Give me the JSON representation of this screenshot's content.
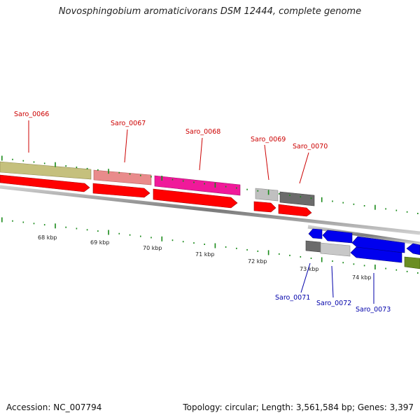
{
  "title": "Novosphingobium aromaticivorans DSM 12444, complete genome",
  "footer": {
    "accession": "Accession: NC_007794",
    "topology": "Topology: circular; Length: 3,561,584 bp; Genes: 3,397"
  },
  "genes_top": [
    {
      "label": "Saro_0066",
      "color": "#c5c07d"
    },
    {
      "label": "Saro_0067",
      "color": "#e98b8b"
    },
    {
      "label": "Saro_0068",
      "color": "#f0199a"
    },
    {
      "label": "Saro_0069",
      "color": "#c0c0c0"
    },
    {
      "label": "Saro_0070",
      "color": "#6b6b6b"
    }
  ],
  "genes_bottom": [
    {
      "label": "Saro_0071",
      "color": "#c8c8c8"
    },
    {
      "label": "Saro_0072",
      "color": "#0000ee"
    },
    {
      "label": "Saro_0073",
      "color": "#0000ee"
    }
  ],
  "kbp_labels": [
    "68 kbp",
    "69 kbp",
    "70 kbp",
    "71 kbp",
    "72 kbp",
    "73 kbp",
    "74 kbp"
  ],
  "colors": {
    "top_label": "#cc0000",
    "bottom_label": "#0000aa",
    "tick": "#1a8a1a",
    "cds": "#ff0000",
    "backbone": "#888888"
  }
}
